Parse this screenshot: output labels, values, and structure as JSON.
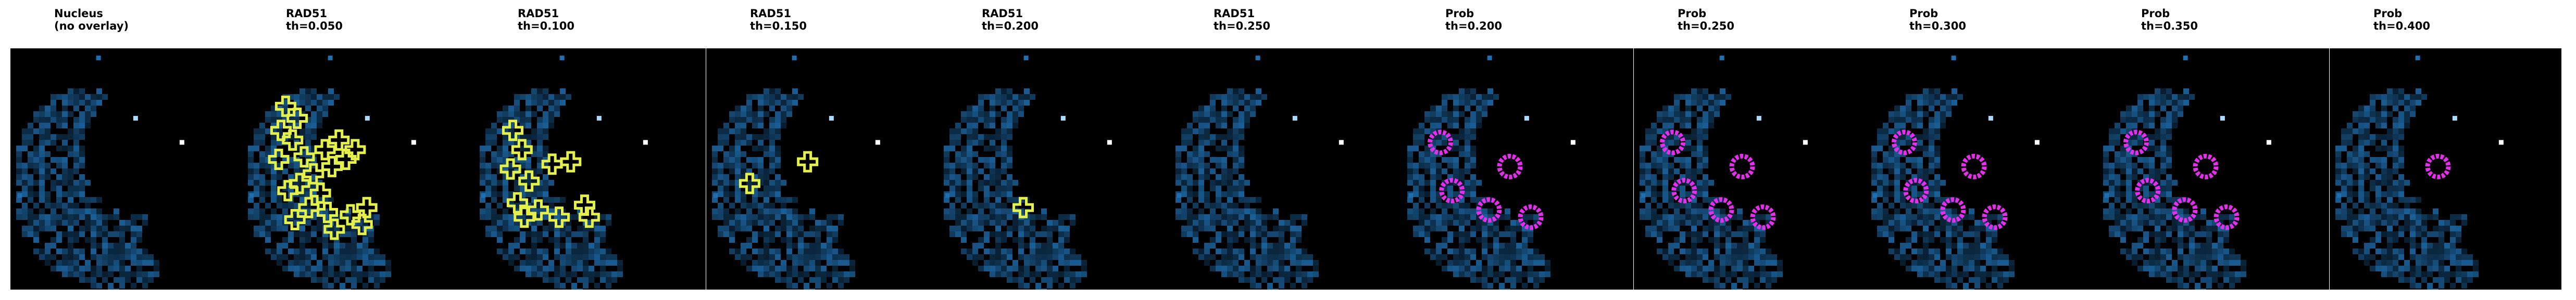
{
  "colors": {
    "background": "#000000",
    "nucleus_signal": "#1f6fb0",
    "rad51_overlay": "#e6f04a",
    "prob_overlay": "#e82cf0"
  },
  "panels": [
    {
      "line1": "Nucleus",
      "line2": "(no overlay)",
      "overlay": "none",
      "spots": []
    },
    {
      "line1": "RAD51",
      "line2": "th=0.050",
      "overlay": "rad51",
      "spots": [
        [
          0.12,
          0.24
        ],
        [
          0.17,
          0.29
        ],
        [
          0.1,
          0.34
        ],
        [
          0.15,
          0.38
        ],
        [
          0.09,
          0.46
        ],
        [
          0.2,
          0.45
        ],
        [
          0.24,
          0.52
        ],
        [
          0.18,
          0.56
        ],
        [
          0.13,
          0.59
        ],
        [
          0.27,
          0.6
        ],
        [
          0.32,
          0.49
        ],
        [
          0.38,
          0.46
        ],
        [
          0.29,
          0.42
        ],
        [
          0.35,
          0.38
        ],
        [
          0.42,
          0.42
        ],
        [
          0.22,
          0.66
        ],
        [
          0.3,
          0.68
        ],
        [
          0.4,
          0.69
        ],
        [
          0.47,
          0.66
        ],
        [
          0.45,
          0.73
        ],
        [
          0.16,
          0.71
        ],
        [
          0.33,
          0.75
        ]
      ]
    },
    {
      "line1": "RAD51",
      "line2": "th=0.100",
      "overlay": "rad51",
      "spots": [
        [
          0.1,
          0.34
        ],
        [
          0.14,
          0.42
        ],
        [
          0.09,
          0.5
        ],
        [
          0.17,
          0.55
        ],
        [
          0.27,
          0.48
        ],
        [
          0.35,
          0.47
        ],
        [
          0.12,
          0.64
        ],
        [
          0.21,
          0.67
        ],
        [
          0.3,
          0.7
        ],
        [
          0.43,
          0.7
        ],
        [
          0.41,
          0.65
        ],
        [
          0.15,
          0.7
        ]
      ]
    },
    {
      "line1": "RAD51",
      "line2": "th=0.150",
      "overlay": "rad51",
      "spots": [
        [
          0.37,
          0.47
        ],
        [
          0.12,
          0.56
        ]
      ]
    },
    {
      "line1": "RAD51",
      "line2": "th=0.200",
      "overlay": "rad51",
      "spots": [
        [
          0.3,
          0.66
        ]
      ]
    },
    {
      "line1": "RAD51",
      "line2": "th=0.250",
      "overlay": "none",
      "spots": []
    },
    {
      "line1": "Prob",
      "line2": "th=0.200",
      "overlay": "prob",
      "spots": [
        [
          0.1,
          0.39
        ],
        [
          0.4,
          0.49
        ],
        [
          0.15,
          0.59
        ],
        [
          0.31,
          0.67
        ],
        [
          0.49,
          0.7
        ]
      ]
    },
    {
      "line1": "Prob",
      "line2": "th=0.250",
      "overlay": "prob",
      "spots": [
        [
          0.1,
          0.39
        ],
        [
          0.4,
          0.49
        ],
        [
          0.15,
          0.59
        ],
        [
          0.31,
          0.67
        ],
        [
          0.49,
          0.7
        ]
      ]
    },
    {
      "line1": "Prob",
      "line2": "th=0.300",
      "overlay": "prob",
      "spots": [
        [
          0.1,
          0.39
        ],
        [
          0.4,
          0.49
        ],
        [
          0.15,
          0.59
        ],
        [
          0.31,
          0.67
        ],
        [
          0.49,
          0.7
        ]
      ]
    },
    {
      "line1": "Prob",
      "line2": "th=0.350",
      "overlay": "prob",
      "spots": [
        [
          0.1,
          0.39
        ],
        [
          0.4,
          0.49
        ],
        [
          0.15,
          0.59
        ],
        [
          0.31,
          0.67
        ],
        [
          0.49,
          0.7
        ]
      ]
    },
    {
      "line1": "Prob",
      "line2": "th=0.400",
      "overlay": "prob",
      "spots": [
        [
          0.4,
          0.49
        ]
      ]
    }
  ]
}
